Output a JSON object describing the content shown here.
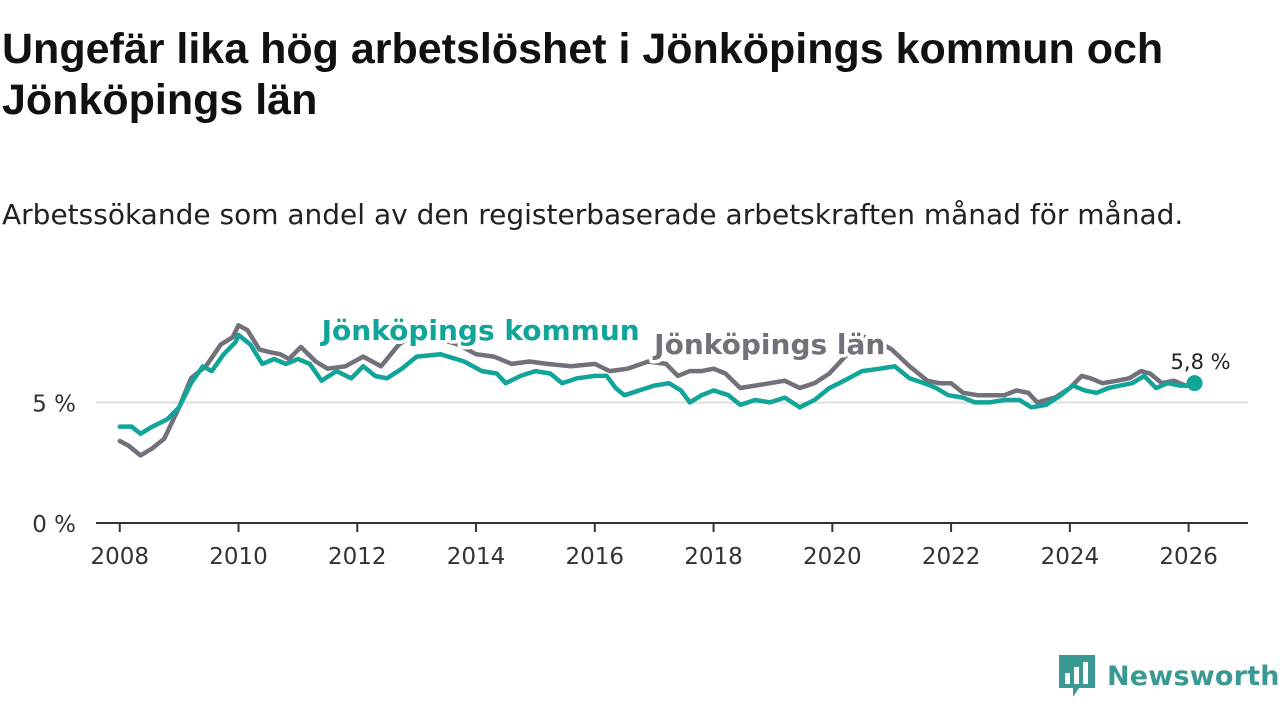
{
  "title": "Ungefär lika hög arbetslöshet i Jönköpings kommun och Jönköpings län",
  "subtitle": "Arbetssökande som andel av den registerbaserade arbetskraften månad för månad.",
  "brand": {
    "name": "Newsworthy",
    "icon": "newsworthy-logo-icon"
  },
  "colors": {
    "kommun": "#11a59a",
    "lan": "#72707a",
    "grid": "#dddddd",
    "axis": "#333333"
  },
  "chart_data": {
    "type": "line",
    "xlabel": "",
    "ylabel": "",
    "xlim": [
      2007.6,
      2027.0
    ],
    "ylim": [
      0,
      9
    ],
    "x_ticks": [
      2008,
      2010,
      2012,
      2014,
      2016,
      2018,
      2020,
      2022,
      2024,
      2026
    ],
    "x_tick_labels": [
      "2008",
      "2010",
      "2012",
      "2014",
      "2016",
      "2018",
      "2020",
      "2022",
      "2024",
      "2026"
    ],
    "y_ticks": [
      0,
      5
    ],
    "y_tick_labels": [
      "0 %",
      "5 %"
    ],
    "gridlines": "horizontal",
    "last_value_label": "5,8 %",
    "series": [
      {
        "name": "Jönköpings län",
        "label": "Jönköpings län",
        "color": "#72707a",
        "points": [
          [
            2008.0,
            3.4
          ],
          [
            2008.15,
            3.2
          ],
          [
            2008.35,
            2.8
          ],
          [
            2008.55,
            3.1
          ],
          [
            2008.75,
            3.5
          ],
          [
            2009.0,
            4.8
          ],
          [
            2009.2,
            6.0
          ],
          [
            2009.45,
            6.5
          ],
          [
            2009.7,
            7.4
          ],
          [
            2009.9,
            7.7
          ],
          [
            2010.0,
            8.2
          ],
          [
            2010.15,
            8.0
          ],
          [
            2010.35,
            7.2
          ],
          [
            2010.5,
            7.1
          ],
          [
            2010.7,
            7.0
          ],
          [
            2010.85,
            6.8
          ],
          [
            2011.05,
            7.3
          ],
          [
            2011.3,
            6.7
          ],
          [
            2011.5,
            6.4
          ],
          [
            2011.8,
            6.5
          ],
          [
            2012.1,
            6.9
          ],
          [
            2012.4,
            6.5
          ],
          [
            2012.7,
            7.4
          ],
          [
            2013.0,
            7.9
          ],
          [
            2013.3,
            7.7
          ],
          [
            2013.7,
            7.4
          ],
          [
            2014.0,
            7.0
          ],
          [
            2014.3,
            6.9
          ],
          [
            2014.6,
            6.6
          ],
          [
            2014.9,
            6.7
          ],
          [
            2015.2,
            6.6
          ],
          [
            2015.6,
            6.5
          ],
          [
            2016.0,
            6.6
          ],
          [
            2016.25,
            6.3
          ],
          [
            2016.55,
            6.4
          ],
          [
            2016.9,
            6.7
          ],
          [
            2017.2,
            6.6
          ],
          [
            2017.4,
            6.1
          ],
          [
            2017.6,
            6.3
          ],
          [
            2017.8,
            6.3
          ],
          [
            2018.0,
            6.4
          ],
          [
            2018.2,
            6.2
          ],
          [
            2018.45,
            5.6
          ],
          [
            2018.7,
            5.7
          ],
          [
            2018.95,
            5.8
          ],
          [
            2019.2,
            5.9
          ],
          [
            2019.45,
            5.6
          ],
          [
            2019.7,
            5.8
          ],
          [
            2019.95,
            6.2
          ],
          [
            2020.25,
            7.0
          ],
          [
            2020.45,
            7.8
          ],
          [
            2020.65,
            7.6
          ],
          [
            2020.85,
            7.4
          ],
          [
            2021.0,
            7.2
          ],
          [
            2021.3,
            6.5
          ],
          [
            2021.6,
            5.9
          ],
          [
            2021.8,
            5.8
          ],
          [
            2022.0,
            5.8
          ],
          [
            2022.2,
            5.4
          ],
          [
            2022.45,
            5.3
          ],
          [
            2022.7,
            5.3
          ],
          [
            2022.9,
            5.3
          ],
          [
            2023.1,
            5.5
          ],
          [
            2023.3,
            5.4
          ],
          [
            2023.45,
            5.0
          ],
          [
            2023.75,
            5.2
          ],
          [
            2024.0,
            5.6
          ],
          [
            2024.2,
            6.1
          ],
          [
            2024.35,
            6.0
          ],
          [
            2024.55,
            5.8
          ],
          [
            2024.8,
            5.9
          ],
          [
            2025.0,
            6.0
          ],
          [
            2025.2,
            6.3
          ],
          [
            2025.35,
            6.2
          ],
          [
            2025.55,
            5.8
          ],
          [
            2025.75,
            5.9
          ],
          [
            2025.95,
            5.7
          ],
          [
            2026.1,
            5.8
          ]
        ]
      },
      {
        "name": "Jönköpings kommun",
        "label": "Jönköpings kommun",
        "color": "#11a59a",
        "points": [
          [
            2008.0,
            4.0
          ],
          [
            2008.2,
            4.0
          ],
          [
            2008.35,
            3.7
          ],
          [
            2008.55,
            4.0
          ],
          [
            2008.8,
            4.3
          ],
          [
            2009.0,
            4.8
          ],
          [
            2009.2,
            5.8
          ],
          [
            2009.4,
            6.5
          ],
          [
            2009.55,
            6.3
          ],
          [
            2009.75,
            7.0
          ],
          [
            2009.95,
            7.5
          ],
          [
            2010.0,
            7.8
          ],
          [
            2010.2,
            7.4
          ],
          [
            2010.4,
            6.6
          ],
          [
            2010.6,
            6.8
          ],
          [
            2010.8,
            6.6
          ],
          [
            2011.0,
            6.8
          ],
          [
            2011.2,
            6.6
          ],
          [
            2011.4,
            5.9
          ],
          [
            2011.65,
            6.3
          ],
          [
            2011.9,
            6.0
          ],
          [
            2012.1,
            6.5
          ],
          [
            2012.3,
            6.1
          ],
          [
            2012.5,
            6.0
          ],
          [
            2012.75,
            6.4
          ],
          [
            2013.0,
            6.9
          ],
          [
            2013.4,
            7.0
          ],
          [
            2013.8,
            6.7
          ],
          [
            2014.1,
            6.3
          ],
          [
            2014.35,
            6.2
          ],
          [
            2014.5,
            5.8
          ],
          [
            2014.75,
            6.1
          ],
          [
            2015.0,
            6.3
          ],
          [
            2015.25,
            6.2
          ],
          [
            2015.45,
            5.8
          ],
          [
            2015.7,
            6.0
          ],
          [
            2016.0,
            6.1
          ],
          [
            2016.2,
            6.1
          ],
          [
            2016.35,
            5.6
          ],
          [
            2016.5,
            5.3
          ],
          [
            2016.75,
            5.5
          ],
          [
            2017.0,
            5.7
          ],
          [
            2017.25,
            5.8
          ],
          [
            2017.45,
            5.5
          ],
          [
            2017.6,
            5.0
          ],
          [
            2017.8,
            5.3
          ],
          [
            2018.0,
            5.5
          ],
          [
            2018.25,
            5.3
          ],
          [
            2018.45,
            4.9
          ],
          [
            2018.7,
            5.1
          ],
          [
            2018.95,
            5.0
          ],
          [
            2019.2,
            5.2
          ],
          [
            2019.45,
            4.8
          ],
          [
            2019.7,
            5.1
          ],
          [
            2019.95,
            5.6
          ],
          [
            2020.2,
            5.9
          ],
          [
            2020.5,
            6.3
          ],
          [
            2020.8,
            6.4
          ],
          [
            2021.05,
            6.5
          ],
          [
            2021.3,
            6.0
          ],
          [
            2021.55,
            5.8
          ],
          [
            2021.75,
            5.6
          ],
          [
            2021.95,
            5.3
          ],
          [
            2022.2,
            5.2
          ],
          [
            2022.4,
            5.0
          ],
          [
            2022.65,
            5.0
          ],
          [
            2022.9,
            5.1
          ],
          [
            2023.15,
            5.1
          ],
          [
            2023.35,
            4.8
          ],
          [
            2023.6,
            4.9
          ],
          [
            2023.85,
            5.3
          ],
          [
            2024.05,
            5.7
          ],
          [
            2024.25,
            5.5
          ],
          [
            2024.45,
            5.4
          ],
          [
            2024.65,
            5.6
          ],
          [
            2024.85,
            5.7
          ],
          [
            2025.05,
            5.8
          ],
          [
            2025.25,
            6.1
          ],
          [
            2025.45,
            5.6
          ],
          [
            2025.65,
            5.8
          ],
          [
            2025.85,
            5.7
          ],
          [
            2026.0,
            5.7
          ],
          [
            2026.1,
            5.8
          ]
        ]
      }
    ]
  }
}
